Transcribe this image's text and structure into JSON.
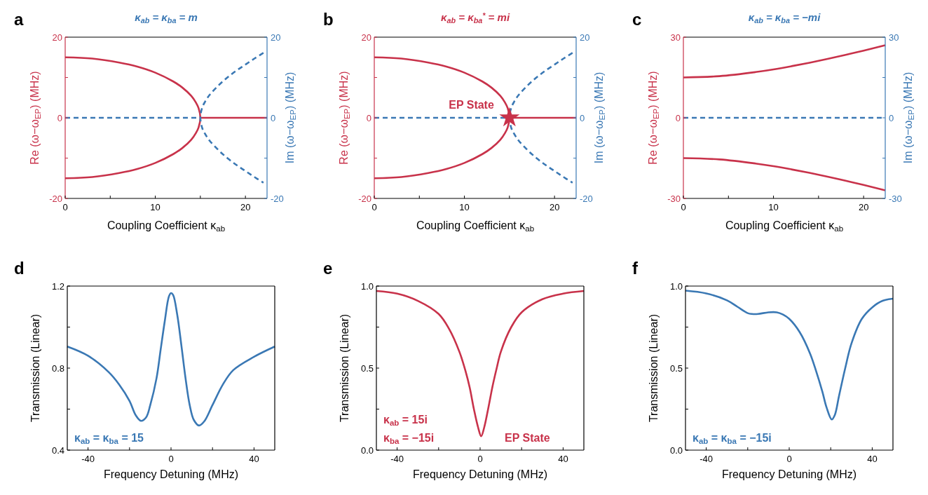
{
  "chart_data": [
    {
      "type": "line",
      "title": "κ$_{ab}$ = κ$_{ba}$ = m",
      "xlabel": "Coupling  Coefficient κ$_{ab}$",
      "ylabel": "Re (ω−ω$_{EP}$) (MHz)",
      "y2label": "Im (ω−ω$_{EP}$) (MHz)",
      "annotations": [
        "a"
      ],
      "xlim": [
        0,
        22.4
      ],
      "xticks": [
        0,
        {
          "value": 5,
          "label": null
        },
        10,
        {
          "value": 15,
          "label": null
        },
        20
      ],
      "ylim": [
        -20,
        20
      ],
      "yticks": [
        -20,
        {
          "value": -10,
          "label": null
        },
        0,
        {
          "value": 10,
          "label": null
        },
        20
      ],
      "y2lim": [
        -20,
        20
      ],
      "y2ticks": [
        -20,
        {
          "value": -10,
          "label": null
        },
        0,
        {
          "value": 10,
          "label": null
        },
        20
      ],
      "series": [
        {
          "color": "#c8324a",
          "x": [
            0,
            3,
            6,
            8,
            10,
            12,
            13,
            14,
            14.5,
            14.8,
            15,
            14.8,
            14.5,
            14,
            13,
            12,
            10,
            8,
            6,
            3,
            0
          ],
          "values": [
            15,
            14.7,
            13.7,
            12.7,
            11.2,
            9,
            7.5,
            5.4,
            3.8,
            2.4,
            0,
            -2.4,
            -3.8,
            -5.4,
            -7.5,
            -9,
            -11.2,
            -12.7,
            -13.7,
            -14.7,
            -15
          ]
        },
        {
          "color": "#c8324a",
          "x": [
            15,
            22.4
          ],
          "values": [
            0,
            0
          ]
        },
        {
          "color": "#3a78b4",
          "axis": "y2",
          "line_style": "dashed",
          "x": [
            0,
            15
          ],
          "values": [
            0,
            0
          ]
        },
        {
          "color": "#3a78b4",
          "axis": "y2",
          "line_style": "dashed",
          "x": [
            22,
            21,
            20,
            19,
            18,
            17,
            16,
            15.5,
            15.2,
            15,
            15.2,
            15.5,
            16,
            17,
            18,
            19,
            20,
            21,
            22
          ],
          "values": [
            16.1,
            14.7,
            13.2,
            11.7,
            10,
            8,
            5.6,
            3.9,
            2.5,
            0,
            -2.5,
            -3.9,
            -5.6,
            -8,
            -10,
            -11.7,
            -13.2,
            -14.7,
            -16.1
          ]
        }
      ]
    },
    {
      "type": "line",
      "title": "κ$_{ab}$ = κ$_{ba}$$^{*}$ = mi",
      "xlabel": "Coupling  Coefficient κ$_{ab}$",
      "ylabel": "Re (ω−ω$_{EP}$) (MHz)",
      "y2label": "Im (ω−ω$_{EP}$) (MHz)",
      "annotations": [
        "b",
        {
          "text": "EP State",
          "x": 15,
          "y": 0
        }
      ],
      "xlim": [
        0,
        22.4
      ],
      "xticks": [
        0,
        {
          "value": 5,
          "label": null
        },
        10,
        {
          "value": 15,
          "label": null
        },
        20
      ],
      "ylim": [
        -20,
        20
      ],
      "yticks": [
        -20,
        {
          "value": -10,
          "label": null
        },
        0,
        {
          "value": 10,
          "label": null
        },
        20
      ],
      "y2lim": [
        -20,
        20
      ],
      "y2ticks": [
        -20,
        {
          "value": -10,
          "label": null
        },
        0,
        {
          "value": 10,
          "label": null
        },
        20
      ],
      "series": [
        {
          "color": "#c8324a",
          "x": [
            0,
            3,
            6,
            8,
            10,
            12,
            13,
            14,
            14.5,
            14.8,
            15,
            14.8,
            14.5,
            14,
            13,
            12,
            10,
            8,
            6,
            3,
            0
          ],
          "values": [
            15,
            14.7,
            13.7,
            12.7,
            11.2,
            9,
            7.5,
            5.4,
            3.8,
            2.4,
            0,
            -2.4,
            -3.8,
            -5.4,
            -7.5,
            -9,
            -11.2,
            -12.7,
            -13.7,
            -14.7,
            -15
          ]
        },
        {
          "color": "#c8324a",
          "x": [
            15,
            22.4
          ],
          "values": [
            0,
            0
          ]
        },
        {
          "color": "#3a78b4",
          "axis": "y2",
          "line_style": "dashed",
          "x": [
            0,
            15
          ],
          "values": [
            0,
            0
          ]
        },
        {
          "color": "#3a78b4",
          "axis": "y2",
          "line_style": "dashed",
          "x": [
            22,
            21,
            20,
            19,
            18,
            17,
            16,
            15.5,
            15.2,
            15,
            15.2,
            15.5,
            16,
            17,
            18,
            19,
            20,
            21,
            22
          ],
          "values": [
            16.1,
            14.7,
            13.2,
            11.7,
            10,
            8,
            5.6,
            3.9,
            2.5,
            0,
            -2.5,
            -3.9,
            -5.6,
            -8,
            -10,
            -11.7,
            -13.2,
            -14.7,
            -16.1
          ]
        },
        {
          "type": "scatter",
          "marker": "star",
          "color": "#c8324a",
          "x": [
            15
          ],
          "values": [
            0
          ]
        }
      ]
    },
    {
      "type": "line",
      "title": "κ$_{ab}$ = κ$_{ba}$ = −mi",
      "xlabel": "Coupling  Coefficient κ$_{ab}$",
      "ylabel": "Re (ω−ω$_{EP}$) (MHz)",
      "y2label": "Im (ω−ω$_{EP}$) (MHz)",
      "annotations": [
        "c"
      ],
      "xlim": [
        0,
        22.4
      ],
      "xticks": [
        0,
        {
          "value": 5,
          "label": null
        },
        10,
        {
          "value": 15,
          "label": null
        },
        20
      ],
      "ylim": [
        -30,
        30
      ],
      "yticks": [
        -30,
        {
          "value": -15,
          "label": null
        },
        0,
        {
          "value": 15,
          "label": null
        },
        30
      ],
      "y2lim": [
        -30,
        30
      ],
      "y2ticks": [
        -30,
        {
          "value": -15,
          "label": null
        },
        0,
        {
          "value": 15,
          "label": null
        },
        30
      ],
      "series": [
        {
          "color": "#c8324a",
          "x": [
            0,
            4,
            8,
            10,
            12,
            14,
            16,
            18,
            20,
            22.4
          ],
          "values": [
            15,
            15.5,
            17,
            18,
            19.2,
            20.5,
            21.9,
            23.4,
            25,
            27
          ]
        },
        {
          "color": "#c8324a",
          "x": [
            0,
            4,
            8,
            10,
            12,
            14,
            16,
            18,
            20,
            22.4
          ],
          "values": [
            -15,
            -15.5,
            -17,
            -18,
            -19.2,
            -20.5,
            -21.9,
            -23.4,
            -25,
            -27
          ]
        },
        {
          "color": "#3a78b4",
          "axis": "y2",
          "line_style": "dashed",
          "x": [
            0,
            22.4
          ],
          "values": [
            0,
            0
          ]
        }
      ]
    },
    {
      "type": "line",
      "xlabel": "Frequency Detuning (MHz)",
      "ylabel": "Transmission (Linear)",
      "annotations": [
        "d",
        "κ$_{ab}$ = κ$_{ba}$ = 15"
      ],
      "xlim": [
        -50,
        50
      ],
      "xticks": [
        -40,
        {
          "value": -20,
          "label": null
        },
        0,
        {
          "value": 20,
          "label": null
        },
        40
      ],
      "ylim": [
        0.4,
        1.2
      ],
      "yticks": [
        0.4,
        {
          "value": 0.6,
          "label": null
        },
        0.8,
        {
          "value": 1.0,
          "label": null
        },
        1.2
      ],
      "series": [
        {
          "color": "#3a78b4",
          "x": [
            -50,
            -40,
            -30,
            -25,
            -20,
            -17,
            -14.5,
            -12,
            -10,
            -7,
            -5,
            -3,
            -1,
            0,
            1,
            3,
            5,
            7,
            9,
            11,
            13.5,
            16,
            20,
            25,
            30,
            40,
            50
          ],
          "values": [
            0.905,
            0.86,
            0.78,
            0.72,
            0.64,
            0.57,
            0.543,
            0.56,
            0.62,
            0.75,
            0.89,
            1.03,
            1.15,
            1.166,
            1.157,
            1.06,
            0.91,
            0.75,
            0.62,
            0.547,
            0.52,
            0.54,
            0.62,
            0.72,
            0.79,
            0.855,
            0.905
          ]
        }
      ]
    },
    {
      "type": "line",
      "xlabel": "Frequency Detuning (MHz)",
      "ylabel": "Transmission (Linear)",
      "annotations": [
        "e",
        "κ$_{ab}$ = 15i",
        "κ$_{ba}$ = −15i",
        "EP State"
      ],
      "xlim": [
        -50,
        50
      ],
      "xticks": [
        -40,
        {
          "value": -20,
          "label": null
        },
        0,
        {
          "value": 20,
          "label": null
        },
        40
      ],
      "ylim": [
        0,
        1
      ],
      "yticks": [
        {
          "value": 0,
          "label": "0.0"
        },
        {
          "value": 0.25,
          "label": null
        },
        0.5,
        {
          "value": 0.75,
          "label": null
        },
        {
          "value": 1,
          "label": "1.0"
        }
      ],
      "series": [
        {
          "color": "#c8324a",
          "x": [
            -50,
            -40,
            -30,
            -20,
            -15,
            -10,
            -7,
            -5,
            -3,
            -1,
            0.5,
            2,
            4,
            6,
            8,
            10,
            15,
            20,
            30,
            40,
            50
          ],
          "values": [
            0.97,
            0.954,
            0.91,
            0.83,
            0.74,
            0.6,
            0.48,
            0.38,
            0.25,
            0.14,
            0.085,
            0.14,
            0.26,
            0.39,
            0.5,
            0.6,
            0.75,
            0.84,
            0.92,
            0.954,
            0.97
          ]
        }
      ]
    },
    {
      "type": "line",
      "xlabel": "Frequency Detuning (MHz)",
      "ylabel": "Transmission (Linear)",
      "annotations": [
        "f",
        "κ$_{ab}$ = κ$_{ba}$ = −15i"
      ],
      "xlim": [
        -50,
        50
      ],
      "xticks": [
        -40,
        {
          "value": -20,
          "label": null
        },
        0,
        {
          "value": 20,
          "label": null
        },
        40
      ],
      "ylim": [
        0,
        1
      ],
      "yticks": [
        {
          "value": 0,
          "label": "0.0"
        },
        {
          "value": 0.25,
          "label": null
        },
        0.5,
        {
          "value": 0.75,
          "label": null
        },
        {
          "value": 1,
          "label": "1.0"
        }
      ],
      "series": [
        {
          "color": "#3a78b4",
          "x": [
            -50,
            -40,
            -30,
            -25,
            -20,
            -18,
            -15,
            -10,
            -6,
            -3,
            0,
            5,
            10,
            13,
            16,
            18,
            20.5,
            22,
            24,
            27,
            30,
            35,
            40,
            45,
            50
          ],
          "values": [
            0.972,
            0.955,
            0.913,
            0.874,
            0.835,
            0.83,
            0.83,
            0.84,
            0.84,
            0.826,
            0.8,
            0.72,
            0.59,
            0.48,
            0.355,
            0.26,
            0.187,
            0.215,
            0.33,
            0.5,
            0.65,
            0.8,
            0.87,
            0.91,
            0.923
          ]
        }
      ]
    }
  ]
}
